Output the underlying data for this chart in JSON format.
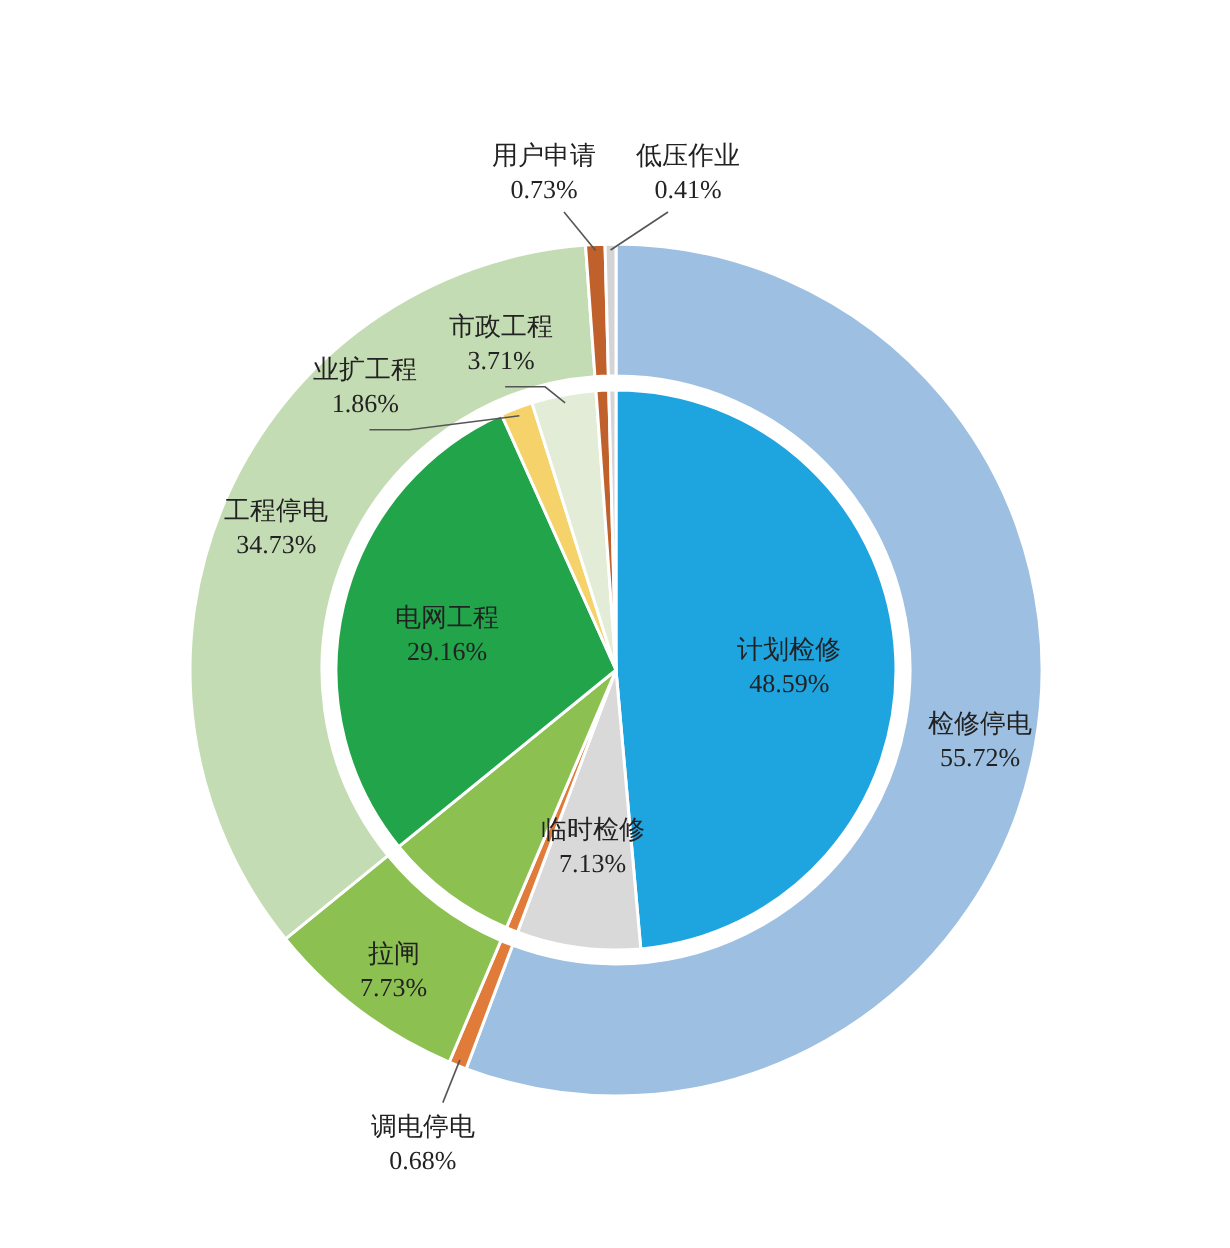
{
  "chart_data": [
    {
      "type": "pie",
      "categories": [
        "计划检修",
        "临时检修",
        null,
        null,
        "电网工程",
        "业扩工程",
        "市政工程",
        null,
        null
      ],
      "values": [
        48.59,
        7.13,
        0.68,
        7.73,
        29.16,
        1.86,
        3.71,
        0.73,
        0.41
      ],
      "value_labels": [
        "48.59%",
        "7.13%",
        null,
        null,
        "29.16%",
        "1.86%",
        "3.71%",
        null,
        null
      ],
      "colors": [
        "#1ea4df",
        "#d9d9d9",
        "#e07b39",
        "#8cc152",
        "#22a44b",
        "#f6d26a",
        "#e2ecd6",
        "#c0612b",
        "#d4d4d4"
      ]
    },
    {
      "type": "donut",
      "categories": [
        "检修停电",
        "调电停电",
        "拉闸",
        "工程停电",
        "用户申请",
        "低压作业"
      ],
      "values": [
        55.72,
        0.68,
        7.73,
        34.73,
        0.73,
        0.41
      ],
      "value_labels": [
        "55.72%",
        "0.68%",
        "7.73%",
        "34.73%",
        "0.73%",
        "0.41%"
      ],
      "colors": [
        "#9dbfe1",
        "#e07b39",
        "#8cc152",
        "#c4dcb3",
        "#c0612b",
        "#d4d4d4"
      ]
    }
  ]
}
